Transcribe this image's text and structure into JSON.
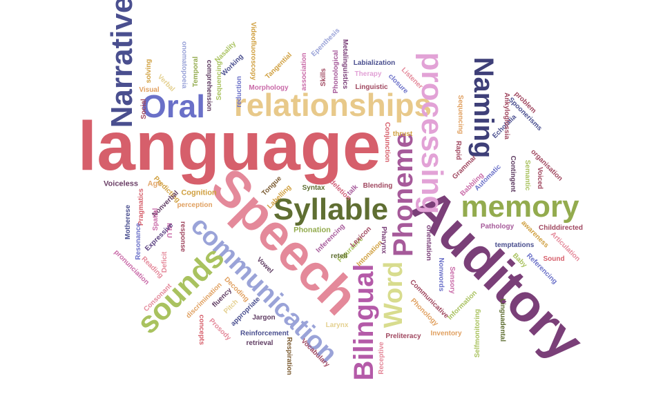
{
  "cloud": {
    "words": [
      {
        "text": "language",
        "color": "#d65f6b"
      },
      {
        "text": "Speech",
        "color": "#e4899a"
      },
      {
        "text": "Auditory",
        "color": "#7a3f78"
      },
      {
        "text": "relationships",
        "color": "#e8c98a"
      },
      {
        "text": "communication",
        "color": "#9aa3d8"
      },
      {
        "text": "Narrative",
        "color": "#4a4f8f"
      },
      {
        "text": "Oral",
        "color": "#6a70c8"
      },
      {
        "text": "processing",
        "color": "#e2a2d6"
      },
      {
        "text": "Naming",
        "color": "#3e3f78"
      },
      {
        "text": "Syllable",
        "color": "#5f6e32"
      },
      {
        "text": "memory",
        "color": "#93ab4e"
      },
      {
        "text": "Phoneme",
        "color": "#a65a9a"
      },
      {
        "text": "sounds",
        "color": "#a9c25f"
      },
      {
        "text": "Bilingual",
        "color": "#b45aa8"
      },
      {
        "text": "Word",
        "color": "#d8dc8e"
      },
      {
        "text": "Voiceless",
        "color": "#6a3f66"
      },
      {
        "text": "Age",
        "color": "#e2a86e"
      },
      {
        "text": "Predicting",
        "color": "#d0a040"
      },
      {
        "text": "Cognition",
        "color": "#d0a040"
      },
      {
        "text": "Pragmatics",
        "color": "#d65f6b"
      },
      {
        "text": "Nonverbal",
        "color": "#5f3c62"
      },
      {
        "text": "perception",
        "color": "#e0a060"
      },
      {
        "text": "Labelling",
        "color": "#d0a040"
      },
      {
        "text": "Tongue",
        "color": "#7a5a30"
      },
      {
        "text": "Syntax",
        "color": "#5f6e32"
      },
      {
        "text": "deletion",
        "color": "#d0607a"
      },
      {
        "text": "talk",
        "color": "#a65a9a"
      },
      {
        "text": "Blending",
        "color": "#a04860"
      },
      {
        "text": "Spatial",
        "color": "#c96aa8"
      },
      {
        "text": "MLU",
        "color": "#c96aa8"
      },
      {
        "text": "response",
        "color": "#a04860"
      },
      {
        "text": "Expressive",
        "color": "#5a4080"
      },
      {
        "text": "Motherese",
        "color": "#4a4f8f"
      },
      {
        "text": "Resonance",
        "color": "#6a70c8"
      },
      {
        "text": "pronunciation",
        "color": "#c96aa8"
      },
      {
        "text": "Reading",
        "color": "#e4899a"
      },
      {
        "text": "Deficit",
        "color": "#e4899a"
      },
      {
        "text": "Consonant",
        "color": "#e4899a"
      },
      {
        "text": "discrimination",
        "color": "#e0a060"
      },
      {
        "text": "Vowel",
        "color": "#5f3c62"
      },
      {
        "text": "Decoding",
        "color": "#e0a060"
      },
      {
        "text": "fluency",
        "color": "#5f3c62"
      },
      {
        "text": "Pitch",
        "color": "#e4d090"
      },
      {
        "text": "appropriate",
        "color": "#4a4f8f"
      },
      {
        "text": "concepts",
        "color": "#d65f6b"
      },
      {
        "text": "Prosody",
        "color": "#e4899a"
      },
      {
        "text": "Jargon",
        "color": "#5f3c62"
      },
      {
        "text": "Reinforcement",
        "color": "#4a4f8f"
      },
      {
        "text": "retrieval",
        "color": "#5f3c62"
      },
      {
        "text": "Respiration",
        "color": "#7a5a30"
      },
      {
        "text": "Vocabulary",
        "color": "#a04860"
      },
      {
        "text": "Larynx",
        "color": "#e4d090"
      },
      {
        "text": "Phonation",
        "color": "#93ab4e"
      },
      {
        "text": "Inferencing",
        "color": "#a65a9a"
      },
      {
        "text": "Figurative",
        "color": "#a9c25f"
      },
      {
        "text": "Intonation",
        "color": "#d0a040"
      },
      {
        "text": "Lexicon",
        "color": "#a04860"
      },
      {
        "text": "Pharynx",
        "color": "#7a3f78"
      },
      {
        "text": "retell",
        "color": "#5f6e32"
      },
      {
        "text": "Receptive",
        "color": "#e4899a"
      },
      {
        "text": "Preliteracy",
        "color": "#a04860"
      },
      {
        "text": "Nonwords",
        "color": "#6a70c8"
      },
      {
        "text": "orientation",
        "color": "#7a3f78"
      },
      {
        "text": "Sensory",
        "color": "#c96aa8"
      },
      {
        "text": "Communicative",
        "color": "#a04860"
      },
      {
        "text": "Phonology",
        "color": "#e0a060"
      },
      {
        "text": "Information",
        "color": "#a9c25f"
      },
      {
        "text": "Inventory",
        "color": "#e0a060"
      },
      {
        "text": "Selfmonitoring",
        "color": "#a9c25f"
      },
      {
        "text": "Linguadental",
        "color": "#5f6e32"
      },
      {
        "text": "Pathology",
        "color": "#a65a9a"
      },
      {
        "text": "temptations",
        "color": "#4a4f8f"
      },
      {
        "text": "awareness",
        "color": "#d0a040"
      },
      {
        "text": "Childdirected",
        "color": "#a04860"
      },
      {
        "text": "Articulation",
        "color": "#e4899a"
      },
      {
        "text": "Sound",
        "color": "#d65f6b"
      },
      {
        "text": "Referencing",
        "color": "#6a70c8"
      },
      {
        "text": "Baby",
        "color": "#a9c25f"
      },
      {
        "text": "Visual",
        "color": "#e0a060"
      },
      {
        "text": "Social",
        "color": "#a04860"
      },
      {
        "text": "solving",
        "color": "#d0a040"
      },
      {
        "text": "Verbal",
        "color": "#e4d090"
      },
      {
        "text": "onomatopoeia",
        "color": "#9aa3d8"
      },
      {
        "text": "Temporal",
        "color": "#93ab4e"
      },
      {
        "text": "comprehension",
        "color": "#5f3c62"
      },
      {
        "text": "Working",
        "color": "#4a4f8f"
      },
      {
        "text": "Nasality",
        "color": "#a9c25f"
      },
      {
        "text": "Sequencing",
        "color": "#a9c25f"
      },
      {
        "text": "reduction",
        "color": "#6a70c8"
      },
      {
        "text": "Videofluoroscopy",
        "color": "#d0a040"
      },
      {
        "text": "Tangential",
        "color": "#d0a040"
      },
      {
        "text": "Morphology",
        "color": "#c96aa8"
      },
      {
        "text": "association",
        "color": "#c96aa8"
      },
      {
        "text": "Epenthesis",
        "color": "#9aa3d8"
      },
      {
        "text": "Skills",
        "color": "#a04860"
      },
      {
        "text": "Phonological",
        "color": "#a65a9a"
      },
      {
        "text": "Metalinguistics",
        "color": "#7a3f78"
      },
      {
        "text": "Labialization",
        "color": "#4a4f8f"
      },
      {
        "text": "Therapy",
        "color": "#e2a2d6"
      },
      {
        "text": "closure",
        "color": "#6a70c8"
      },
      {
        "text": "Linguistic",
        "color": "#a04860"
      },
      {
        "text": "Listener",
        "color": "#e4899a"
      },
      {
        "text": "Conjunction",
        "color": "#d65f6b"
      },
      {
        "text": "thrust",
        "color": "#d0a040"
      },
      {
        "text": "Rapid",
        "color": "#a04860"
      },
      {
        "text": "Grammar",
        "color": "#a04860"
      },
      {
        "text": "Babbling",
        "color": "#c96aa8"
      },
      {
        "text": "Automatic",
        "color": "#6a70c8"
      },
      {
        "text": "Sequencing",
        "color": "#e0a060"
      },
      {
        "text": "Echolalia",
        "color": "#4a4f8f"
      },
      {
        "text": "Ankyloglossia",
        "color": "#a04860"
      },
      {
        "text": "Spoonerisms",
        "color": "#4a4f8f"
      },
      {
        "text": "problem",
        "color": "#a04860"
      },
      {
        "text": "organisation",
        "color": "#a04860"
      },
      {
        "text": "Contingent",
        "color": "#5f3c62"
      },
      {
        "text": "Semantic",
        "color": "#a9c25f"
      },
      {
        "text": "Voiced",
        "color": "#a04860"
      }
    ]
  }
}
